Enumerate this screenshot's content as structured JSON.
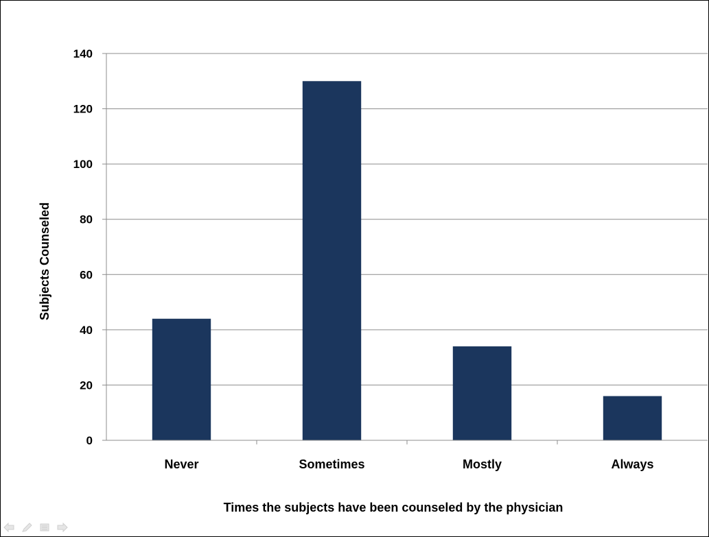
{
  "chart_data": {
    "type": "bar",
    "title": "",
    "xlabel": "Times the subjects have been counseled by the physician",
    "ylabel": "Subjects Counseled",
    "categories": [
      "Never",
      "Sometimes",
      "Mostly",
      "Always"
    ],
    "values": [
      44,
      130,
      34,
      16
    ],
    "ylim": [
      0,
      140
    ],
    "yticks": [
      0,
      20,
      40,
      60,
      80,
      100,
      120,
      140
    ],
    "grid": true,
    "legend": "none",
    "bar_color": "#1b365d"
  },
  "slideshow_nav": {
    "icons": [
      "prev-arrow-icon",
      "pen-icon",
      "menu-icon",
      "next-arrow-icon"
    ]
  }
}
